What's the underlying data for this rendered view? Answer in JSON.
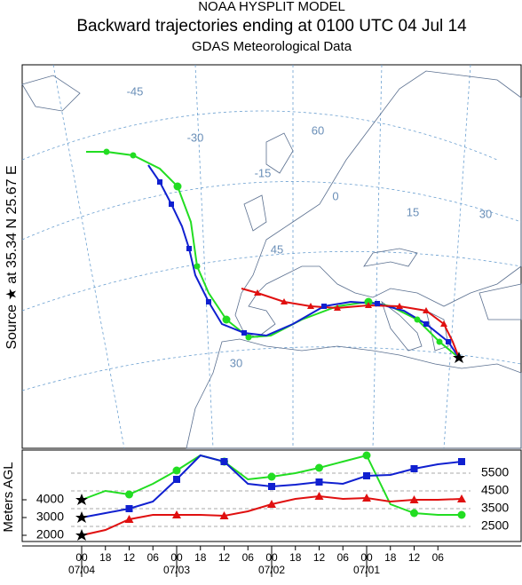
{
  "header": {
    "model": "NOAA HYSPLIT MODEL",
    "title": "Backward trajectories ending at 0100 UTC 04 Jul 14",
    "subtitle": "GDAS Meteorological Data"
  },
  "map": {
    "source_label": "Source ★ at 35.34 N 25.67 E",
    "grid_labels": [
      "-45",
      "-30",
      "-15",
      "60",
      "0",
      "15",
      "30",
      "45",
      "30"
    ]
  },
  "height_panel": {
    "ylabel": "Meters AGL",
    "x": [
      0,
      6,
      12,
      18,
      24,
      30,
      36,
      42,
      48,
      54,
      60,
      66,
      72,
      78,
      84,
      90,
      96
    ],
    "xlim": [
      0,
      96
    ],
    "xticks": [
      {
        "value": 0,
        "label": "00"
      },
      {
        "value": 6,
        "label": "18"
      },
      {
        "value": 12,
        "label": "12"
      },
      {
        "value": 18,
        "label": "06"
      },
      {
        "value": 24,
        "label": "00"
      },
      {
        "value": 30,
        "label": "18"
      },
      {
        "value": 36,
        "label": "12"
      },
      {
        "value": 42,
        "label": "06"
      },
      {
        "value": 48,
        "label": "00"
      },
      {
        "value": 54,
        "label": "18"
      },
      {
        "value": 60,
        "label": "12"
      },
      {
        "value": 66,
        "label": "06"
      },
      {
        "value": 72,
        "label": "00"
      },
      {
        "value": 78,
        "label": "18"
      },
      {
        "value": 84,
        "label": "12"
      },
      {
        "value": 90,
        "label": "06"
      }
    ],
    "date_ticks": [
      {
        "value": 0,
        "label": "07/04"
      },
      {
        "value": 24,
        "label": "07/03"
      },
      {
        "value": 48,
        "label": "07/02"
      },
      {
        "value": 72,
        "label": "07/01"
      }
    ],
    "ylim": [
      1650,
      6800
    ],
    "yticks": [
      2000,
      3000,
      4000
    ],
    "y_ref_lines": [
      2500,
      3500,
      4500,
      5500
    ],
    "series": [
      {
        "color": "#22dd22",
        "marker": "circle",
        "values": [
          4000,
          4500,
          4300,
          4900,
          5650,
          6500,
          6150,
          5150,
          5300,
          5500,
          5800,
          6150,
          6500,
          3750,
          3250,
          3150,
          3150
        ]
      },
      {
        "color": "#1020d0",
        "marker": "square",
        "values": [
          3000,
          3250,
          3500,
          3900,
          5150,
          6500,
          6150,
          4900,
          4750,
          4850,
          5000,
          4900,
          5350,
          5400,
          5750,
          6000,
          6150
        ]
      },
      {
        "color": "#e01010",
        "marker": "triangle",
        "values": [
          2000,
          2300,
          2900,
          3150,
          3150,
          3150,
          3100,
          3350,
          3750,
          4050,
          4200,
          4050,
          4100,
          3900,
          4000,
          4000,
          4050
        ]
      }
    ]
  }
}
